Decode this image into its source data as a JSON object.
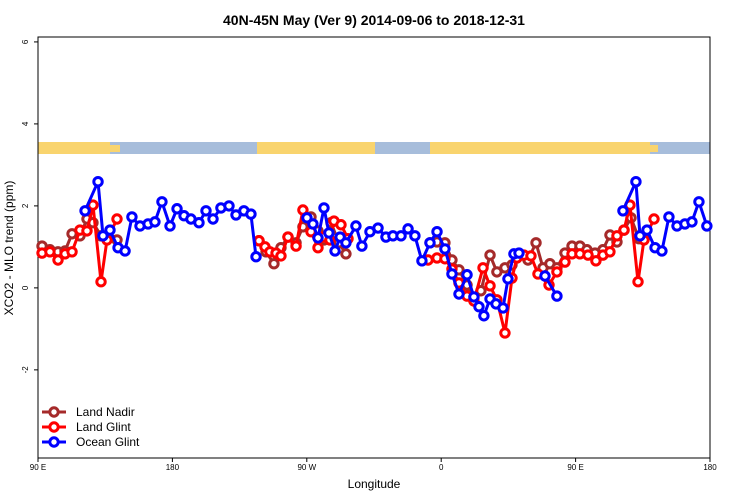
{
  "chart_data": {
    "type": "line",
    "title": "40N-45N May (Ver 9)   2014-09-06 to 2018-12-31",
    "x_label": "Longitude",
    "y_label": "XCO2 - MLO trend (ppm)",
    "xlim": [
      90,
      540
    ],
    "xticks": [
      {
        "value": 90,
        "label": "90 E"
      },
      180,
      {
        "value": 270,
        "label": "90 W"
      },
      {
        "value": 360,
        "label": "0"
      },
      {
        "value": 450,
        "label": "90 E"
      },
      {
        "value": 540,
        "label": "180"
      }
    ],
    "ylim": [
      -4.15,
      6.12
    ],
    "yticks": [
      -2,
      0,
      2,
      4,
      6
    ],
    "legend": "bottom-left",
    "series": [
      {
        "name": "Land Nadir",
        "color": "#a52a2a",
        "x": [
          92.7,
          98.0,
          103.4,
          108.1,
          112.8,
          118.1,
          122.8,
          126.8,
          132.2,
          136.9,
          142.9,
          null,
          238.0,
          242.7,
          248.0,
          252.7,
          257.4,
          262.8,
          267.4,
          272.8,
          277.5,
          281.5,
          286.2,
          291.5,
          296.2,
          null,
          352.5,
          357.2,
          362.5,
          367.2,
          371.9,
          377.3,
          381.9,
          386.6,
          392.7,
          397.3,
          402.7,
          407.4,
          412.1,
          418.1,
          423.5,
          428.2,
          432.8,
          437.5,
          442.9,
          447.6,
          452.9,
          457.6,
          463.0,
          468.3,
          473.0,
          477.7,
          482.4,
          487.1,
          492.4,
          496.4
        ],
        "values": [
          1.02,
          0.93,
          0.88,
          0.9,
          1.32,
          1.27,
          1.68,
          1.59,
          1.27,
          1.2,
          1.17,
          null,
          1.15,
          0.88,
          0.59,
          0.98,
          1.24,
          1.1,
          1.49,
          1.73,
          1.39,
          1.17,
          1.59,
          1.1,
          0.83,
          null,
          1.1,
          1.12,
          1.1,
          0.68,
          0.44,
          0.07,
          -0.24,
          -0.07,
          0.8,
          0.39,
          0.49,
          0.56,
          0.83,
          0.68,
          1.1,
          0.49,
          0.59,
          0.49,
          0.85,
          1.02,
          1.02,
          0.93,
          0.85,
          0.93,
          1.29,
          1.12,
          1.41,
          1.71,
          1.2,
          1.24
        ]
      },
      {
        "name": "Land Glint",
        "color": "#ff0000",
        "x": [
          92.7,
          98.0,
          103.4,
          108.1,
          112.8,
          118.1,
          122.8,
          126.8,
          132.2,
          136.2,
          142.9,
          null,
          238.0,
          242.0,
          245.3,
          249.4,
          252.7,
          257.4,
          262.8,
          267.4,
          272.8,
          277.5,
          280.8,
          285.5,
          288.2,
          292.9,
          297.6,
          null,
          351.2,
          357.2,
          362.5,
          367.2,
          371.9,
          377.3,
          381.9,
          388.0,
          392.7,
          397.3,
          402.7,
          407.4,
          410.7,
          415.4,
          420.1,
          424.8,
          432.2,
          437.5,
          442.9,
          447.6,
          452.9,
          458.3,
          463.6,
          468.3,
          473.0,
          477.7,
          482.4,
          486.4,
          491.8,
          495.8,
          502.5
        ],
        "values": [
          0.85,
          0.88,
          0.68,
          0.83,
          0.88,
          1.41,
          1.39,
          2.02,
          0.15,
          1.17,
          1.68,
          null,
          1.15,
          1.0,
          0.88,
          0.85,
          0.78,
          1.24,
          1.02,
          1.9,
          1.37,
          0.98,
          1.24,
          1.17,
          1.63,
          1.54,
          1.2,
          null,
          0.68,
          0.73,
          0.71,
          0.46,
          0.12,
          -0.2,
          -0.32,
          0.49,
          0.05,
          -0.29,
          -1.1,
          0.24,
          0.73,
          0.8,
          0.78,
          0.34,
          0.07,
          0.39,
          0.63,
          0.83,
          0.83,
          0.8,
          0.66,
          0.8,
          0.88,
          1.27,
          1.41,
          2.02,
          0.15,
          1.17,
          1.68
        ]
      },
      {
        "name": "Ocean Glint",
        "color": "#0000ff",
        "x": [
          121.5,
          130.2,
          133.5,
          138.2,
          143.6,
          148.3,
          152.9,
          158.3,
          163.7,
          168.3,
          173.0,
          178.4,
          183.1,
          187.8,
          192.4,
          197.8,
          202.5,
          207.2,
          212.5,
          217.9,
          222.6,
          227.9,
          232.6,
          236.0,
          null,
          270.1,
          274.1,
          277.5,
          281.5,
          284.8,
          288.9,
          292.3,
          296.2,
          302.9,
          306.9,
          312.3,
          317.7,
          323.0,
          327.7,
          333.1,
          337.8,
          342.4,
          347.1,
          352.5,
          357.2,
          362.5,
          367.2,
          371.9,
          377.3,
          381.9,
          385.3,
          388.6,
          392.7,
          396.7,
          401.4,
          404.7,
          408.7,
          412.1,
          null,
          429.5,
          437.5,
          null,
          481.7,
          490.4,
          493.1,
          497.8,
          503.2,
          507.8,
          512.5,
          517.9,
          523.2,
          527.9,
          532.6,
          537.9
        ],
        "values": [
          1.88,
          2.59,
          1.27,
          1.41,
          0.98,
          0.9,
          1.73,
          1.51,
          1.56,
          1.61,
          2.1,
          1.51,
          1.93,
          1.76,
          1.68,
          1.59,
          1.88,
          1.68,
          1.95,
          2.0,
          1.78,
          1.88,
          1.8,
          0.76,
          null,
          1.71,
          1.56,
          1.22,
          1.95,
          1.34,
          0.9,
          1.24,
          1.1,
          1.51,
          1.02,
          1.37,
          1.46,
          1.24,
          1.27,
          1.27,
          1.44,
          1.27,
          0.66,
          1.1,
          1.37,
          0.95,
          0.34,
          -0.15,
          0.32,
          -0.22,
          -0.46,
          -0.68,
          -0.27,
          -0.39,
          -0.49,
          0.22,
          0.83,
          0.85,
          null,
          0.29,
          -0.2,
          null,
          1.88,
          2.59,
          1.27,
          1.41,
          0.98,
          0.9,
          1.73,
          1.51,
          1.56,
          1.61,
          2.1,
          1.51
        ]
      }
    ]
  }
}
